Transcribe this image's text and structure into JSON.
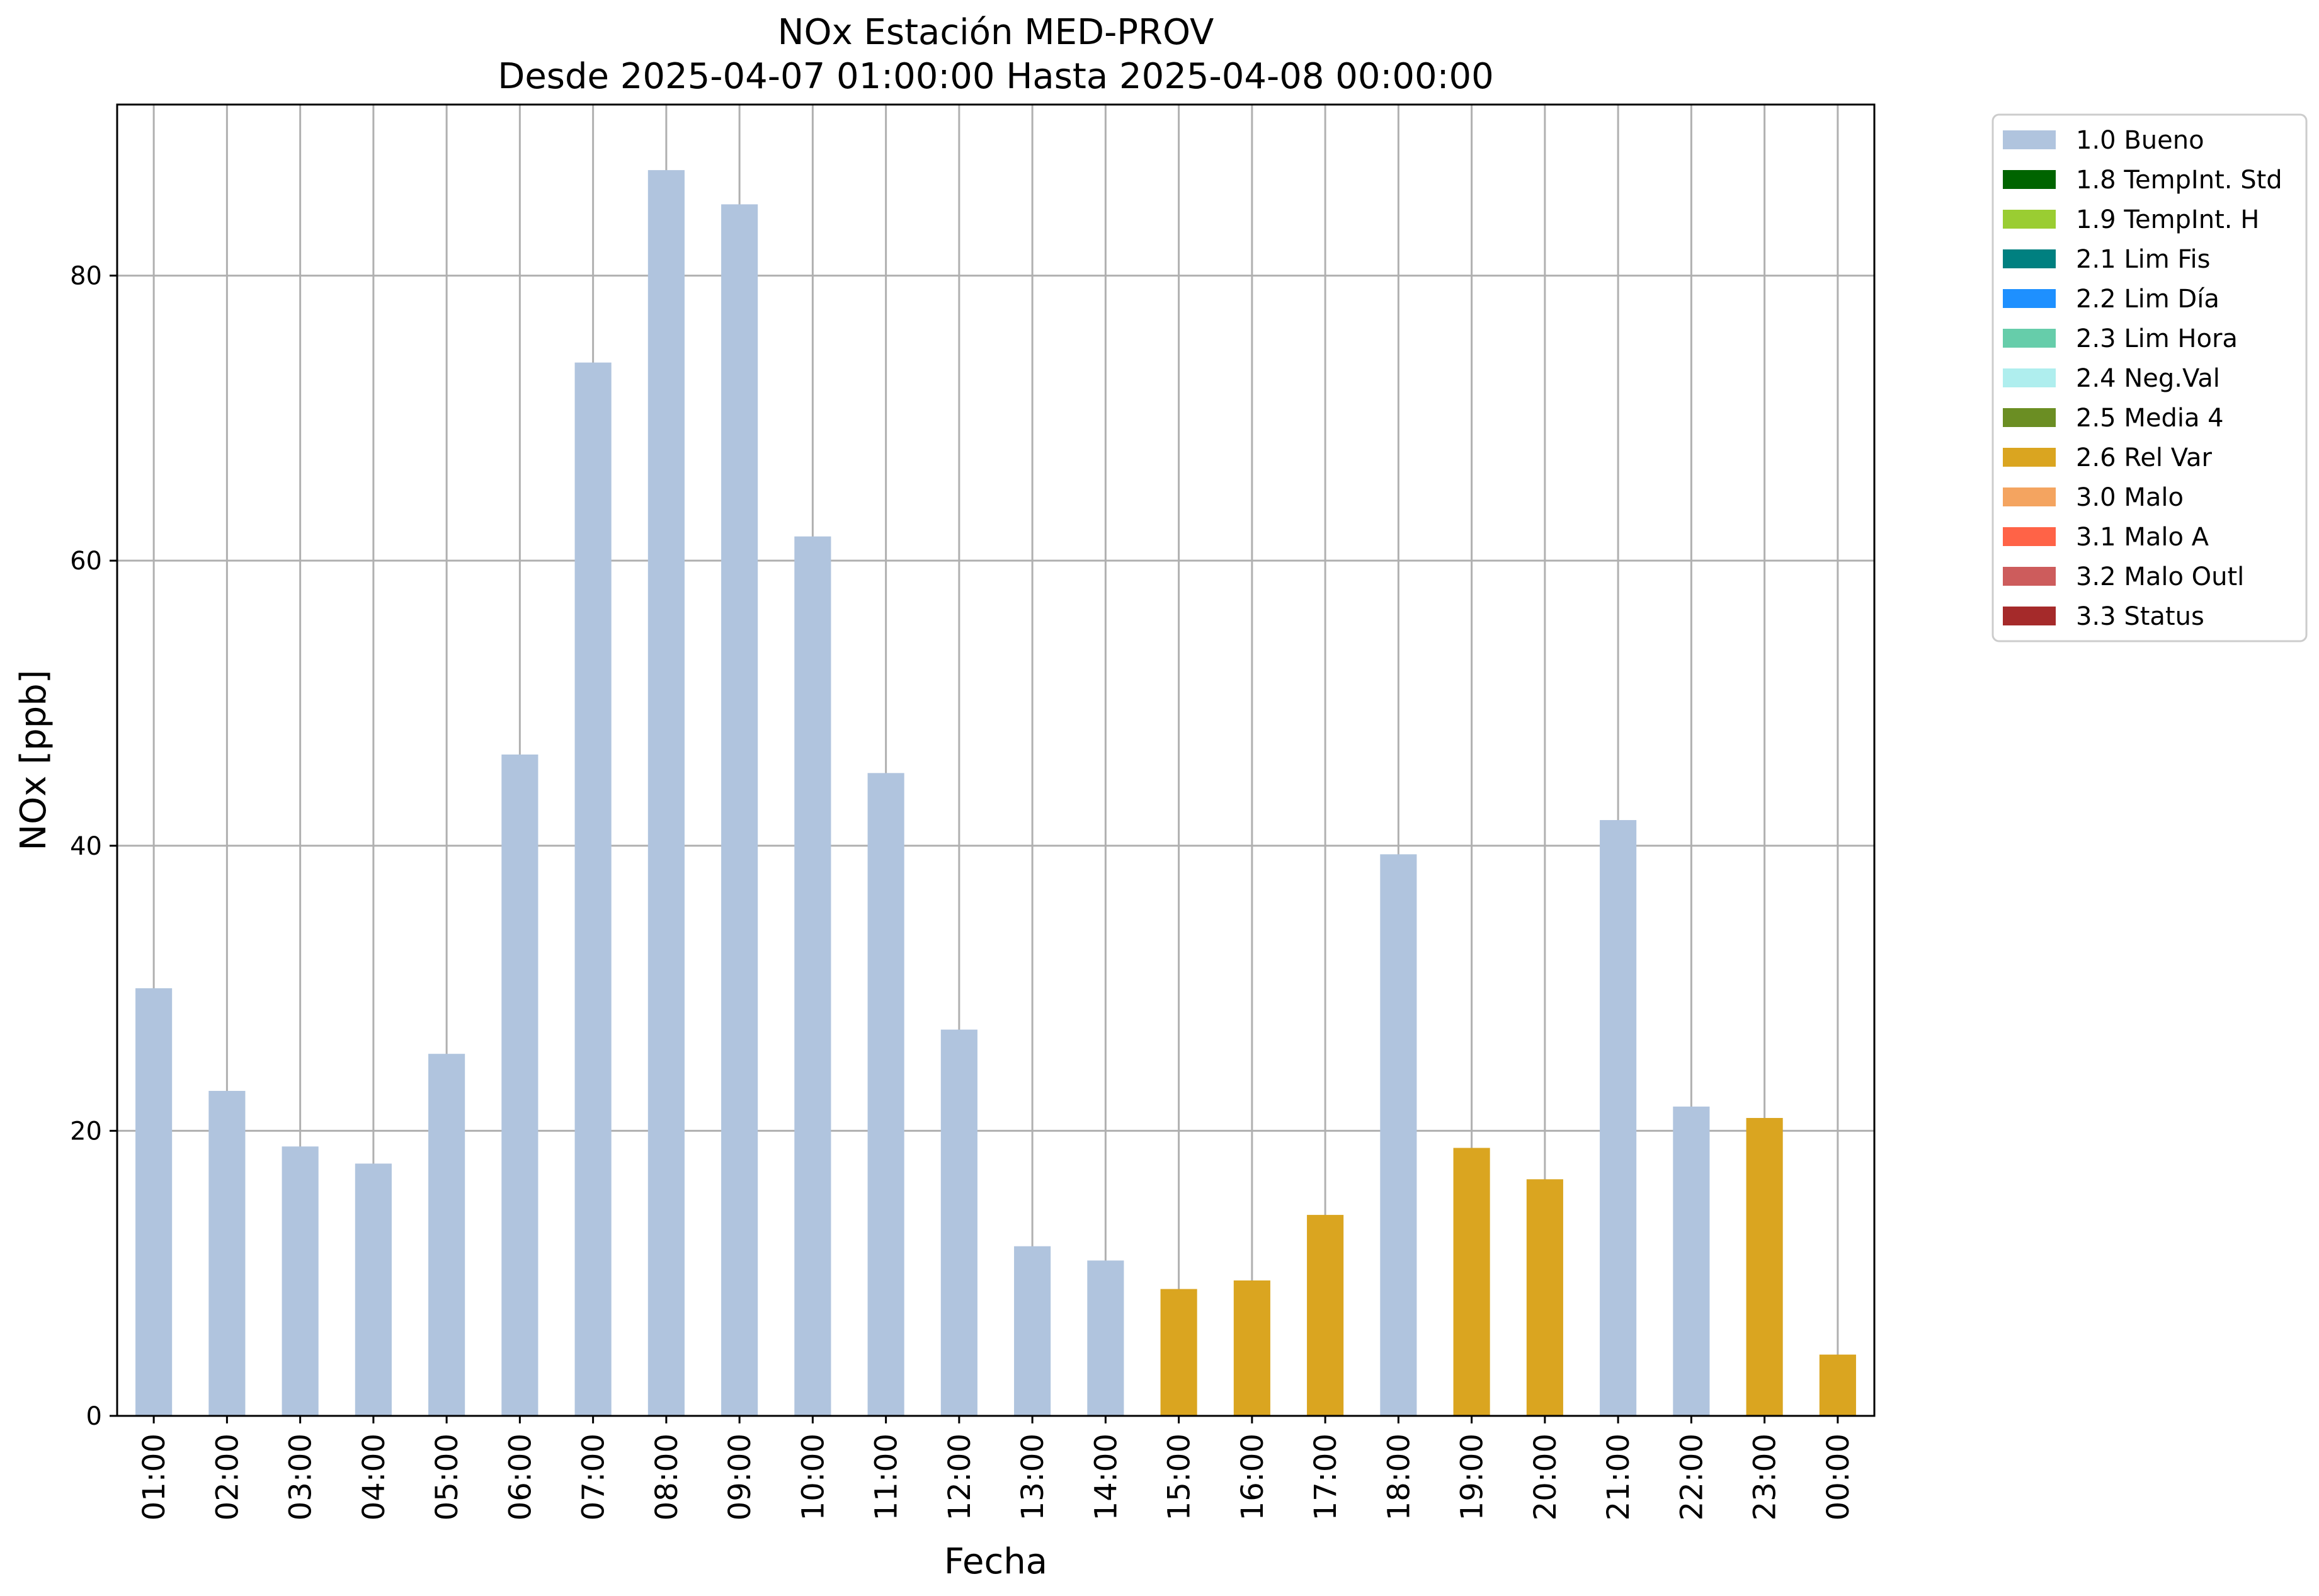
{
  "chart_data": {
    "type": "bar",
    "title": "NOx Estación MED-PROV",
    "subtitle": "Desde 2025-04-07 01:00:00 Hasta 2025-04-08 00:00:00",
    "xlabel": "Fecha",
    "ylabel": "NOx [ppb]",
    "ylim": [
      0,
      92
    ],
    "yticks": [
      0,
      20,
      40,
      60,
      80
    ],
    "grid": true,
    "legend_position": "outside-top-right",
    "categories": [
      "01:00",
      "02:00",
      "03:00",
      "04:00",
      "05:00",
      "06:00",
      "07:00",
      "08:00",
      "09:00",
      "10:00",
      "11:00",
      "12:00",
      "13:00",
      "14:00",
      "15:00",
      "16:00",
      "17:00",
      "18:00",
      "19:00",
      "20:00",
      "21:00",
      "22:00",
      "23:00",
      "00:00"
    ],
    "values": [
      30.0,
      22.8,
      18.9,
      17.7,
      25.4,
      46.4,
      73.9,
      87.4,
      85.0,
      61.7,
      45.1,
      27.1,
      11.9,
      10.9,
      8.9,
      9.5,
      14.1,
      39.4,
      18.8,
      16.6,
      41.8,
      21.7,
      20.9,
      4.3
    ],
    "flags": [
      "1.0 Bueno",
      "1.0 Bueno",
      "1.0 Bueno",
      "1.0 Bueno",
      "1.0 Bueno",
      "1.0 Bueno",
      "1.0 Bueno",
      "1.0 Bueno",
      "1.0 Bueno",
      "1.0 Bueno",
      "1.0 Bueno",
      "1.0 Bueno",
      "1.0 Bueno",
      "1.0 Bueno",
      "2.6 Rel Var",
      "2.6 Rel Var",
      "2.6 Rel Var",
      "1.0 Bueno",
      "2.6 Rel Var",
      "2.6 Rel Var",
      "1.0 Bueno",
      "1.0 Bueno",
      "2.6 Rel Var",
      "2.6 Rel Var"
    ],
    "legend": [
      {
        "label": "1.0 Bueno",
        "color": "#b0c4de"
      },
      {
        "label": "1.8 TempInt. Std",
        "color": "#006400"
      },
      {
        "label": "1.9 TempInt. H",
        "color": "#9acd32"
      },
      {
        "label": "2.1 Lim Fis",
        "color": "#008080"
      },
      {
        "label": "2.2 Lim Día",
        "color": "#1e90ff"
      },
      {
        "label": "2.3 Lim Hora",
        "color": "#66cdaa"
      },
      {
        "label": "2.4 Neg.Val",
        "color": "#afeeee"
      },
      {
        "label": "2.5 Media 4",
        "color": "#6b8e23"
      },
      {
        "label": "2.6 Rel Var",
        "color": "#daa520"
      },
      {
        "label": "3.0 Malo",
        "color": "#f4a460"
      },
      {
        "label": "3.1 Malo A",
        "color": "#ff6347"
      },
      {
        "label": "3.2 Malo Outl",
        "color": "#cd5c5c"
      },
      {
        "label": "3.3 Status",
        "color": "#a52a2a"
      }
    ]
  }
}
